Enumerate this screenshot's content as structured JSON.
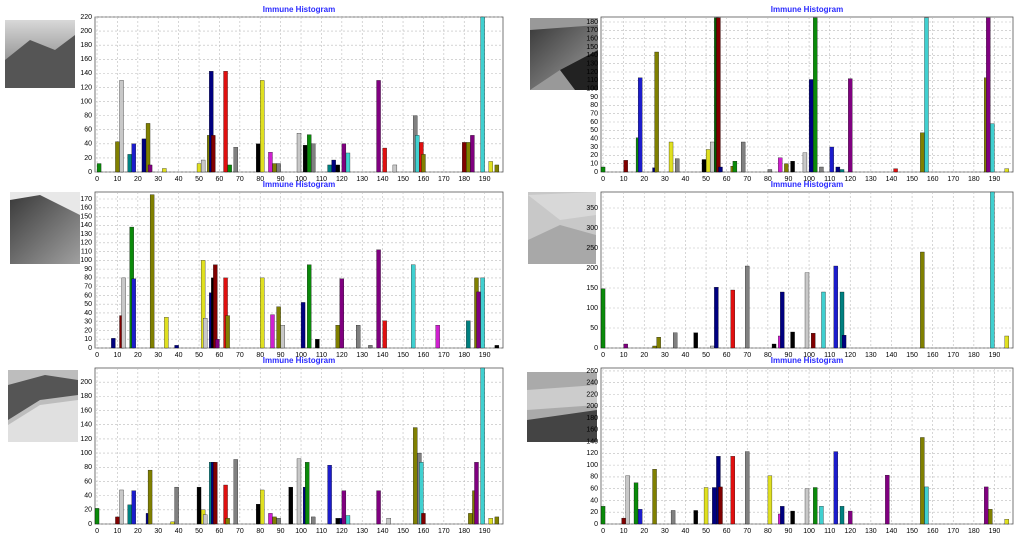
{
  "chart_data": [
    {
      "type": "bar",
      "title": "Immune Histogram",
      "grid": true,
      "xlim": [
        -1,
        199
      ],
      "ylim": [
        0,
        220
      ],
      "xticks": [
        0,
        10,
        20,
        30,
        40,
        50,
        60,
        70,
        80,
        90,
        100,
        110,
        120,
        130,
        140,
        150,
        160,
        170,
        180,
        190
      ],
      "yticks": [
        0,
        20,
        40,
        60,
        80,
        100,
        120,
        140,
        160,
        180,
        200,
        220
      ],
      "x": [
        1,
        10,
        12,
        16,
        18,
        23,
        25,
        26,
        33,
        50,
        52,
        55,
        56,
        57,
        63,
        65,
        68,
        79,
        81,
        85,
        87,
        89,
        99,
        102,
        104,
        106,
        114,
        116,
        118,
        121,
        123,
        138,
        141,
        146,
        156,
        157,
        159,
        160,
        180,
        182,
        184,
        189,
        193,
        196
      ],
      "values": [
        12,
        43,
        130,
        25,
        40,
        47,
        69,
        10,
        5,
        12,
        17,
        52,
        143,
        52,
        143,
        10,
        35,
        40,
        130,
        28,
        12,
        12,
        55,
        38,
        53,
        40,
        10,
        17,
        10,
        40,
        27,
        130,
        34,
        10,
        80,
        52,
        42,
        25,
        42,
        42,
        52,
        220,
        15,
        10
      ],
      "colors": [
        "#0a8a0a",
        "#808000",
        "#c8c8c8",
        "#008080",
        "#1c1ccc",
        "#000080",
        "#808000",
        "#800080",
        "#e0e020",
        "#e0e020",
        "#c8c8c8",
        "#808000",
        "#000080",
        "#800000",
        "#e01010",
        "#0a8a0a",
        "#808080",
        "#000000",
        "#e0e020",
        "#d020d0",
        "#808000",
        "#808080",
        "#c8c8c8",
        "#000000",
        "#0a8a0a",
        "#808080",
        "#008080",
        "#000080",
        "#000000",
        "#800080",
        "#40d0d0",
        "#800080",
        "#e01010",
        "#c8c8c8",
        "#808080",
        "#40d0d0",
        "#e01010",
        "#808000",
        "#800000",
        "#808000",
        "#800080",
        "#40d0d0",
        "#e0e020",
        "#808000"
      ]
    },
    {
      "type": "bar",
      "title": "Immune Histogram",
      "grid": true,
      "xlim": [
        -1,
        199
      ],
      "ylim": [
        0,
        186
      ],
      "xticks": [
        0,
        10,
        20,
        30,
        40,
        50,
        60,
        70,
        80,
        90,
        100,
        110,
        120,
        130,
        140,
        150,
        160,
        170,
        180,
        190
      ],
      "yticks": [
        0,
        10,
        20,
        30,
        40,
        50,
        60,
        70,
        80,
        90,
        100,
        110,
        120,
        130,
        140,
        150,
        160,
        170,
        180
      ],
      "x": [
        0,
        11,
        17,
        18,
        25,
        26,
        33,
        36,
        49,
        51,
        53,
        55,
        56,
        57,
        63,
        64,
        68,
        81,
        86,
        89,
        92,
        98,
        101,
        103,
        106,
        111,
        114,
        116,
        120,
        142,
        155,
        157,
        186,
        187,
        189,
        196
      ],
      "values": [
        6,
        14,
        41,
        113,
        5,
        144,
        36,
        16,
        15,
        27,
        36,
        185,
        185,
        6,
        7,
        13,
        36,
        3,
        17,
        10,
        13,
        23,
        111,
        185,
        6,
        30,
        6,
        3,
        112,
        4,
        47,
        185,
        113,
        185,
        58,
        4
      ],
      "colors": [
        "#0a8a0a",
        "#800000",
        "#0a8a0a",
        "#1c1ccc",
        "#000080",
        "#808000",
        "#e0e020",
        "#808080",
        "#000000",
        "#e0e020",
        "#c8c8c8",
        "#006000",
        "#800000",
        "#000080",
        "#808000",
        "#0a8a0a",
        "#808080",
        "#808080",
        "#d020d0",
        "#808000",
        "#000000",
        "#c8c8c8",
        "#000080",
        "#0a8a0a",
        "#808080",
        "#1c1ccc",
        "#000080",
        "#008080",
        "#800080",
        "#e01010",
        "#808000",
        "#40d0d0",
        "#808000",
        "#800080",
        "#40d0d0",
        "#e0e020"
      ]
    },
    {
      "type": "bar",
      "title": "Immune Histogram",
      "grid": true,
      "xlim": [
        -1,
        199
      ],
      "ylim": [
        0,
        178
      ],
      "xticks": [
        0,
        10,
        20,
        30,
        40,
        50,
        60,
        70,
        80,
        90,
        100,
        110,
        120,
        130,
        140,
        150,
        160,
        170,
        180,
        190
      ],
      "yticks": [
        0,
        10,
        20,
        30,
        40,
        50,
        60,
        70,
        80,
        90,
        100,
        110,
        120,
        130,
        140,
        150,
        160,
        170
      ],
      "x": [
        8,
        12,
        13,
        17,
        18,
        27,
        34,
        39,
        52,
        53,
        56,
        57,
        58,
        59,
        63,
        64,
        81,
        86,
        89,
        91,
        101,
        104,
        108,
        118,
        120,
        128,
        134,
        138,
        141,
        155,
        167,
        182,
        186,
        187,
        189,
        196
      ],
      "values": [
        11,
        37,
        80,
        138,
        79,
        175,
        35,
        3,
        100,
        34,
        63,
        80,
        95,
        10,
        80,
        37,
        80,
        38,
        47,
        26,
        52,
        95,
        10,
        26,
        79,
        26,
        3,
        112,
        31,
        95,
        26,
        31,
        80,
        64,
        80,
        3
      ],
      "colors": [
        "#000080",
        "#800000",
        "#c8c8c8",
        "#0a8a0a",
        "#1c1ccc",
        "#808000",
        "#e0e020",
        "#000080",
        "#e0e020",
        "#c8c8c8",
        "#000080",
        "#000000",
        "#800000",
        "#800080",
        "#e01010",
        "#808000",
        "#e0e020",
        "#d020d0",
        "#808000",
        "#c8c8c8",
        "#000080",
        "#0a8a0a",
        "#000000",
        "#808000",
        "#800080",
        "#808080",
        "#808080",
        "#800080",
        "#e01010",
        "#40d0d0",
        "#d020d0",
        "#008080",
        "#808000",
        "#800080",
        "#40d0d0",
        "#000000"
      ]
    },
    {
      "type": "bar",
      "title": "Immune Histogram",
      "grid": true,
      "xlim": [
        -1,
        199
      ],
      "ylim": [
        0,
        390
      ],
      "xticks": [
        0,
        10,
        20,
        30,
        40,
        50,
        60,
        70,
        80,
        90,
        100,
        110,
        120,
        130,
        140,
        150,
        160,
        170,
        180,
        190
      ],
      "yticks": [
        0,
        50,
        100,
        150,
        200,
        250,
        300,
        350
      ],
      "x": [
        0,
        11,
        25,
        27,
        35,
        45,
        53,
        55,
        63,
        70,
        83,
        86,
        87,
        92,
        99,
        102,
        107,
        113,
        116,
        117,
        155,
        189,
        196
      ],
      "values": [
        148,
        10,
        5,
        27,
        38,
        38,
        5,
        152,
        145,
        205,
        10,
        30,
        140,
        40,
        188,
        37,
        140,
        205,
        140,
        32,
        240,
        390,
        30
      ],
      "colors": [
        "#0a8a0a",
        "#800080",
        "#808000",
        "#808000",
        "#808080",
        "#000000",
        "#c8c8c8",
        "#000080",
        "#e01010",
        "#808080",
        "#000000",
        "#d020d0",
        "#000080",
        "#000000",
        "#c8c8c8",
        "#800000",
        "#40d0d0",
        "#1c1ccc",
        "#008080",
        "#000080",
        "#808000",
        "#40d0d0",
        "#e0e020"
      ]
    },
    {
      "type": "bar",
      "title": "Immune Histogram",
      "grid": true,
      "xlim": [
        -1,
        199
      ],
      "ylim": [
        0,
        220
      ],
      "xticks": [
        0,
        10,
        20,
        30,
        40,
        50,
        60,
        70,
        80,
        90,
        100,
        110,
        120,
        130,
        140,
        150,
        160,
        170,
        180,
        190
      ],
      "yticks": [
        0,
        20,
        40,
        60,
        80,
        100,
        120,
        140,
        160,
        180,
        200
      ],
      "x": [
        0,
        10,
        12,
        16,
        18,
        25,
        26,
        37,
        39,
        50,
        52,
        53,
        56,
        57,
        58,
        63,
        64,
        68,
        79,
        81,
        85,
        87,
        89,
        95,
        99,
        102,
        103,
        106,
        114,
        118,
        120,
        121,
        123,
        138,
        143,
        156,
        158,
        159,
        160,
        183,
        185,
        186,
        189,
        193,
        196
      ],
      "values": [
        22,
        10,
        48,
        27,
        47,
        15,
        76,
        3,
        52,
        52,
        20,
        13,
        87,
        87,
        87,
        55,
        8,
        91,
        28,
        48,
        15,
        10,
        8,
        52,
        92,
        52,
        87,
        10,
        83,
        8,
        8,
        47,
        12,
        47,
        8,
        136,
        100,
        87,
        15,
        15,
        47,
        87,
        220,
        8,
        10
      ],
      "colors": [
        "#0a8a0a",
        "#800000",
        "#c8c8c8",
        "#008080",
        "#1c1ccc",
        "#000080",
        "#808000",
        "#e0e020",
        "#808080",
        "#000000",
        "#e0e020",
        "#c8c8c8",
        "#008080",
        "#000080",
        "#800000",
        "#e01010",
        "#808000",
        "#808080",
        "#000000",
        "#e0e020",
        "#d020d0",
        "#808000",
        "#808080",
        "#000000",
        "#c8c8c8",
        "#000080",
        "#0a8a0a",
        "#808080",
        "#1c1ccc",
        "#000000",
        "#000080",
        "#800080",
        "#40d0d0",
        "#800080",
        "#c8c8c8",
        "#808000",
        "#808080",
        "#40d0d0",
        "#800000",
        "#808000",
        "#808000",
        "#800080",
        "#40d0d0",
        "#e0e020",
        "#808000"
      ]
    },
    {
      "type": "bar",
      "title": "Immune Histogram",
      "grid": true,
      "xlim": [
        -1,
        199
      ],
      "ylim": [
        0,
        265
      ],
      "xticks": [
        0,
        10,
        20,
        30,
        40,
        50,
        60,
        70,
        80,
        90,
        100,
        110,
        120,
        130,
        140,
        150,
        160,
        170,
        180,
        190
      ],
      "yticks": [
        0,
        20,
        40,
        60,
        80,
        100,
        120,
        140,
        160,
        180,
        200,
        220,
        240,
        260
      ],
      "x": [
        0,
        10,
        12,
        16,
        18,
        25,
        34,
        45,
        50,
        54,
        56,
        57,
        63,
        70,
        81,
        86,
        87,
        92,
        99,
        103,
        106,
        113,
        116,
        120,
        138,
        155,
        157,
        186,
        188,
        196
      ],
      "values": [
        30,
        10,
        82,
        70,
        25,
        93,
        23,
        23,
        62,
        62,
        115,
        63,
        115,
        123,
        82,
        17,
        30,
        22,
        60,
        62,
        30,
        123,
        30,
        22,
        83,
        147,
        63,
        63,
        25,
        8
      ],
      "colors": [
        "#0a8a0a",
        "#800000",
        "#c8c8c8",
        "#0a8a0a",
        "#1c1ccc",
        "#808000",
        "#808080",
        "#000000",
        "#e0e020",
        "#000080",
        "#000080",
        "#800000",
        "#e01010",
        "#808080",
        "#e0e020",
        "#d020d0",
        "#000080",
        "#000000",
        "#c8c8c8",
        "#0a8a0a",
        "#40d0d0",
        "#1c1ccc",
        "#008080",
        "#800080",
        "#800080",
        "#808000",
        "#40d0d0",
        "#800080",
        "#808000",
        "#e0e020"
      ]
    }
  ]
}
